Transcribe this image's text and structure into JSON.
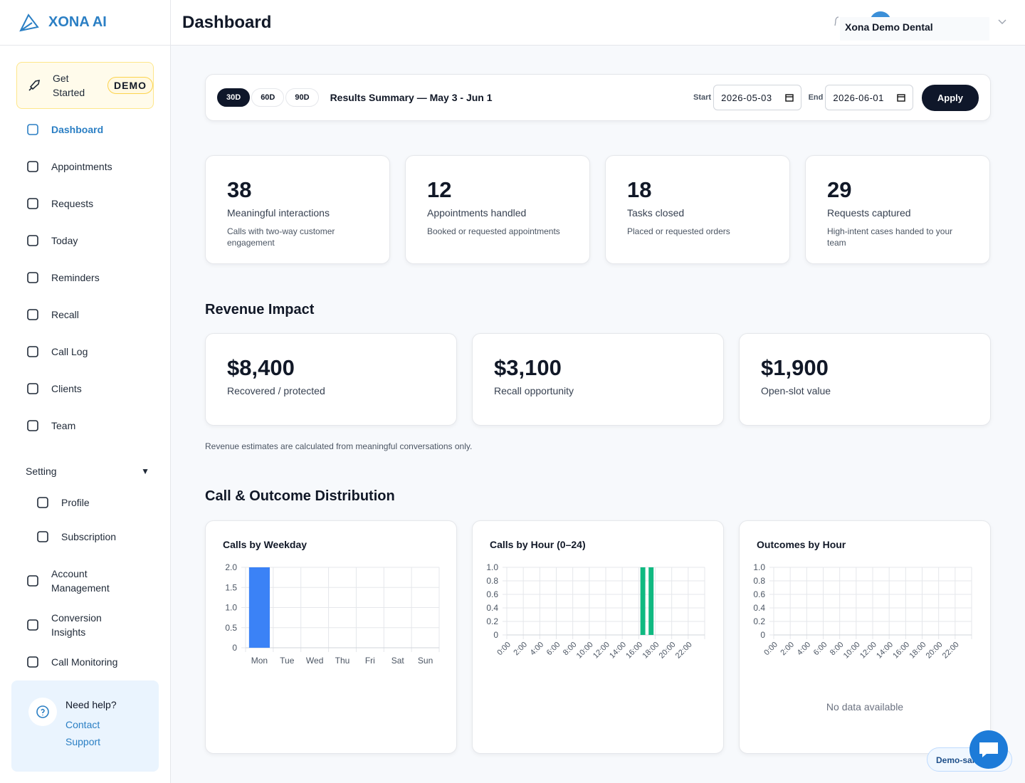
{
  "sidebar": {
    "brand": "XONA AI",
    "get_started": {
      "label": "Get Started",
      "badge": "DEMO"
    },
    "nav": [
      "Dashboard",
      "Appointments",
      "Requests",
      "Today",
      "Reminders",
      "Recall",
      "Call Log",
      "Clients",
      "Team"
    ],
    "setting": "Setting",
    "setting_items": [
      "Profile",
      "Subscription"
    ],
    "more_nav": [
      "Account Management",
      "Conversion Insights",
      "Call Monitoring"
    ],
    "help": {
      "title": "Need help?",
      "link": "Contact Support"
    }
  },
  "header": {
    "title": "Dashboard",
    "account": "Xona Demo Dental"
  },
  "filter": {
    "ranges": [
      "30D",
      "60D",
      "90D"
    ],
    "summary": "Results Summary — May 3 - Jun 1",
    "start_label": "Start",
    "start_value": "2026-05-03",
    "end_label": "End",
    "end_value": "2026-06-01",
    "apply": "Apply"
  },
  "kpis": [
    {
      "value": 38,
      "label": "Meaningful interactions",
      "description": "Calls with two-way customer engagement"
    },
    {
      "value": 12,
      "label": "Appointments handled",
      "description": "Booked or requested appointments"
    },
    {
      "value": 18,
      "label": "Tasks closed",
      "description": "Placed or requested orders"
    },
    {
      "value": 29,
      "label": "Requests captured",
      "description": "High-intent cases handed to your team"
    }
  ],
  "revenue": {
    "title": "Revenue Impact",
    "cards": [
      {
        "value": "$8,400",
        "label": "Recovered / protected"
      },
      {
        "value": "$3,100",
        "label": "Recall opportunity"
      },
      {
        "value": "$1,900",
        "label": "Open-slot value"
      }
    ],
    "note": "Revenue estimates are calculated from meaningful conversations only."
  },
  "distribution_title": "Call & Outcome Distribution",
  "chart_data": [
    {
      "type": "bar",
      "title": "Calls by Weekday",
      "categories": [
        "Mon",
        "Tue",
        "Wed",
        "Thu",
        "Fri",
        "Sat",
        "Sun"
      ],
      "values": [
        2,
        0,
        0,
        0,
        0,
        0,
        0
      ],
      "color": "#3b82f6",
      "ylim": [
        0,
        2
      ],
      "yticks": [
        0,
        0.5,
        {
          "value": 1,
          "label": "1.0"
        },
        1.5,
        {
          "value": 2,
          "label": "2.0"
        }
      ],
      "grid": true
    },
    {
      "type": "bar",
      "title": "Calls by Hour (0–24)",
      "categories": [
        "0:00",
        null,
        "2:00",
        null,
        "4:00",
        null,
        "6:00",
        null,
        "8:00",
        null,
        "10:00",
        null,
        "12:00",
        null,
        "14:00",
        null,
        "16:00",
        null,
        "18:00",
        null,
        "20:00",
        null,
        "22:00",
        null
      ],
      "values": [
        0,
        0,
        0,
        0,
        0,
        0,
        0,
        0,
        0,
        0,
        0,
        0,
        0,
        0,
        0,
        0,
        1,
        1,
        0,
        0,
        0,
        0,
        0,
        0
      ],
      "color": "#10b981",
      "ylim": [
        0,
        1
      ],
      "yticks": [
        0,
        0.2,
        0.4,
        0.6,
        0.8,
        {
          "value": 1,
          "label": "1.0"
        }
      ],
      "grid": true,
      "rotate_labels": true
    },
    {
      "type": "bar",
      "title": "Outcomes by Hour",
      "categories": [
        "0:00",
        null,
        "2:00",
        null,
        "4:00",
        null,
        "6:00",
        null,
        "8:00",
        null,
        "10:00",
        null,
        "12:00",
        null,
        "14:00",
        null,
        "16:00",
        null,
        "18:00",
        null,
        "20:00",
        null,
        "22:00",
        null
      ],
      "ylim": [
        0,
        1
      ],
      "yticks": [
        0,
        0.2,
        0.4,
        0.6,
        0.8,
        {
          "value": 1,
          "label": "1.0"
        }
      ],
      "grid": true,
      "rotate_labels": true,
      "annotation": "No data available"
    }
  ],
  "widget": {
    "label": "Demo-sandbox"
  }
}
